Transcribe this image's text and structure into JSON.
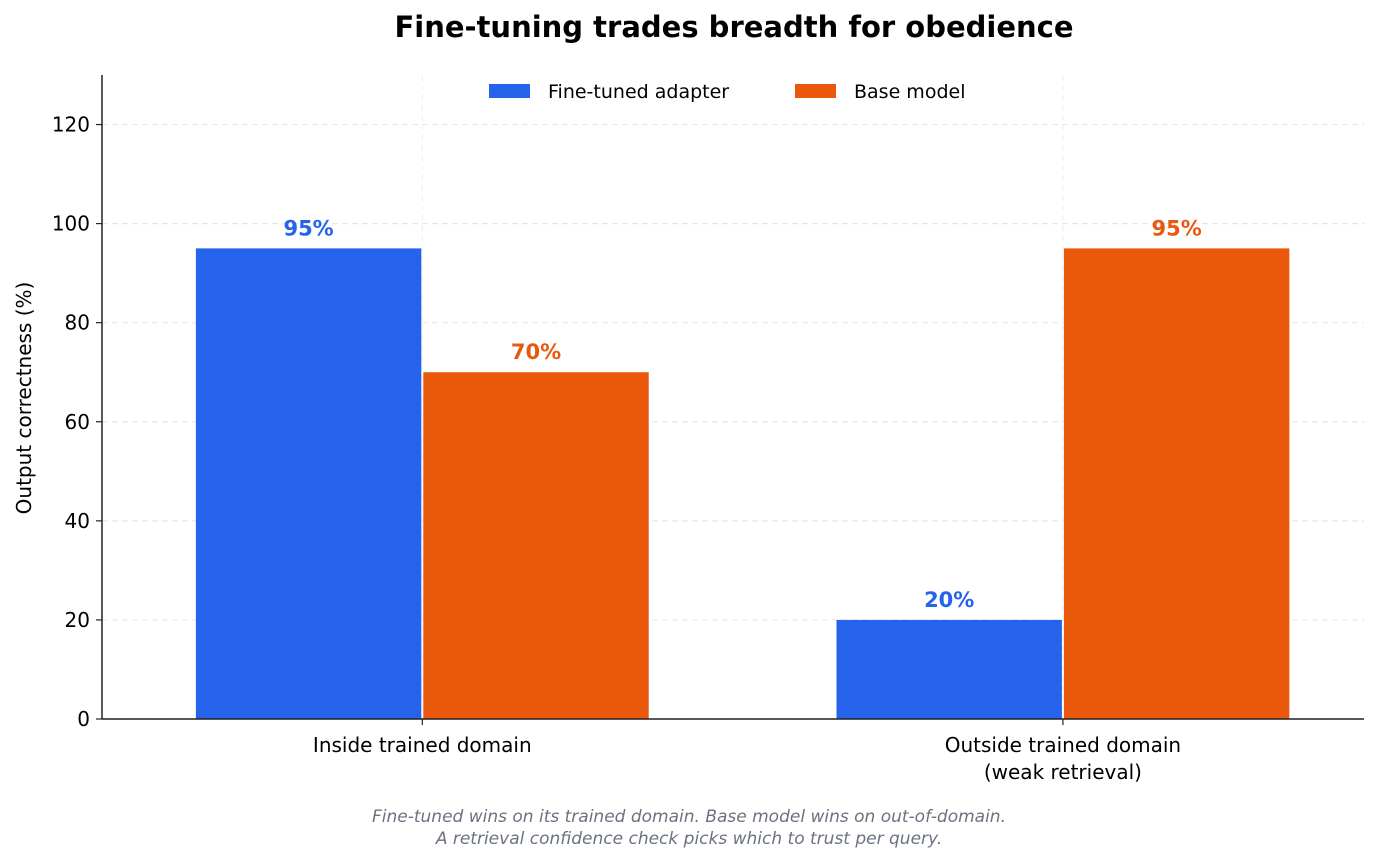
{
  "chart_data": {
    "type": "bar",
    "title": "Fine-tuning trades breadth for obedience",
    "ylabel": "Output correctness (%)",
    "xlabel": "",
    "ylim": [
      0,
      130
    ],
    "yticks": [
      0,
      20,
      40,
      60,
      80,
      100,
      120
    ],
    "grid": true,
    "legend_position": "top-center",
    "categories": [
      [
        "Inside trained domain"
      ],
      [
        "Outside trained domain",
        "(weak retrieval)"
      ]
    ],
    "series": [
      {
        "name": "Fine-tuned adapter",
        "color": "#2563eb",
        "values": [
          95,
          20
        ],
        "labels": [
          "95%",
          "20%"
        ]
      },
      {
        "name": "Base model",
        "color": "#ea580c",
        "values": [
          70,
          95
        ],
        "labels": [
          "70%",
          "95%"
        ]
      }
    ],
    "caption": [
      "Fine-tuned wins on its trained domain. Base model wins on out-of-domain.",
      "A retrieval confidence check picks which to trust per query."
    ]
  }
}
